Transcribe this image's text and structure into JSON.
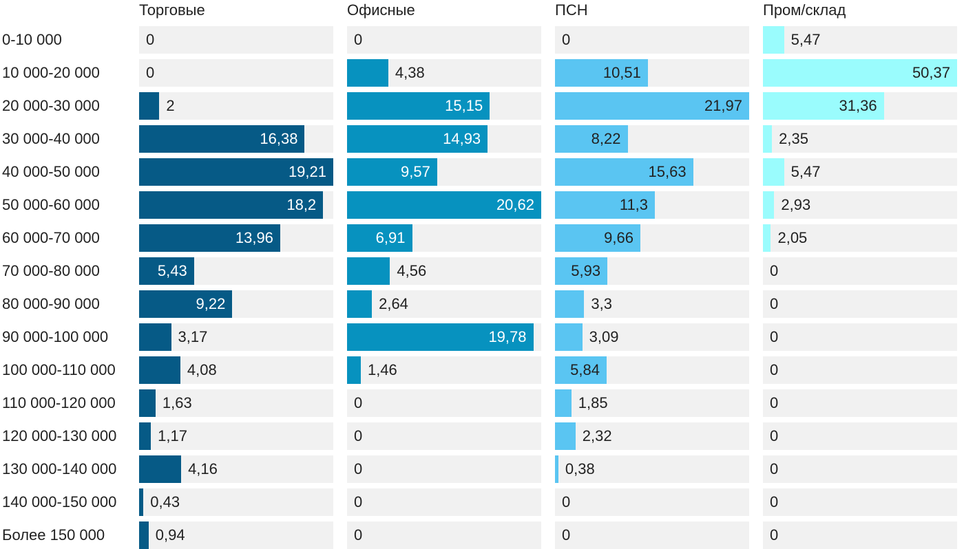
{
  "chart_data": {
    "type": "bar",
    "orientation": "horizontal",
    "layout": "small-multiples",
    "categories": [
      "0-10 000",
      "10 000-20 000",
      "20 000-30 000",
      "30 000-40 000",
      "40 000-50 000",
      "50 000-60 000",
      "60 000-70 000",
      "70 000-80 000",
      "80 000-90 000",
      "90 000-100 000",
      "100 000-110 000",
      "110 000-120 000",
      "120 000-130 000",
      "130 000-140 000",
      "140 000-150 000",
      "Более 150 000"
    ],
    "series": [
      {
        "name": "Торговые",
        "color": "#065a86",
        "label_color_inside": "#ffffff",
        "values": [
          0,
          0,
          2,
          16.38,
          19.21,
          18.2,
          13.96,
          5.43,
          9.22,
          3.17,
          4.08,
          1.63,
          1.17,
          4.16,
          0.43,
          0.94
        ],
        "labels": [
          "0",
          "0",
          "2",
          "16,38",
          "19,21",
          "18,2",
          "13,96",
          "5,43",
          "9,22",
          "3,17",
          "4,08",
          "1,63",
          "1,17",
          "4,16",
          "0,43",
          "0,94"
        ]
      },
      {
        "name": "Офисные",
        "color": "#0792bf",
        "label_color_inside": "#ffffff",
        "values": [
          0,
          4.38,
          15.15,
          14.93,
          9.57,
          20.62,
          6.91,
          4.56,
          2.64,
          19.78,
          1.46,
          0,
          0,
          0,
          0,
          0
        ],
        "labels": [
          "0",
          "4,38",
          "15,15",
          "14,93",
          "9,57",
          "20,62",
          "6,91",
          "4,56",
          "2,64",
          "19,78",
          "1,46",
          "0",
          "0",
          "0",
          "0",
          "0"
        ]
      },
      {
        "name": "ПСН",
        "color": "#5ac5f2",
        "label_color_inside": "#222222",
        "values": [
          0,
          10.51,
          21.97,
          8.22,
          15.63,
          11.3,
          9.66,
          5.93,
          3.3,
          3.09,
          5.84,
          1.85,
          2.32,
          0.38,
          0,
          0
        ],
        "labels": [
          "0",
          "10,51",
          "21,97",
          "8,22",
          "15,63",
          "11,3",
          "9,66",
          "5,93",
          "3,3",
          "3,09",
          "5,84",
          "1,85",
          "2,32",
          "0,38",
          "0",
          "0"
        ]
      },
      {
        "name": "Пром/склад",
        "color": "#9afcfd",
        "label_color_inside": "#222222",
        "values": [
          5.47,
          50.37,
          31.36,
          2.35,
          5.47,
          2.93,
          2.05,
          0,
          0,
          0,
          0,
          0,
          0,
          0,
          0,
          0
        ],
        "labels": [
          "5,47",
          "50,37",
          "31,36",
          "2,35",
          "5,47",
          "2,93",
          "2,05",
          "0",
          "0",
          "0",
          "0",
          "0",
          "0",
          "0",
          "0",
          "0"
        ]
      }
    ],
    "title": "",
    "xlabel": "",
    "ylabel": "",
    "grid": false,
    "legend": "none (series names as panel headings)"
  }
}
